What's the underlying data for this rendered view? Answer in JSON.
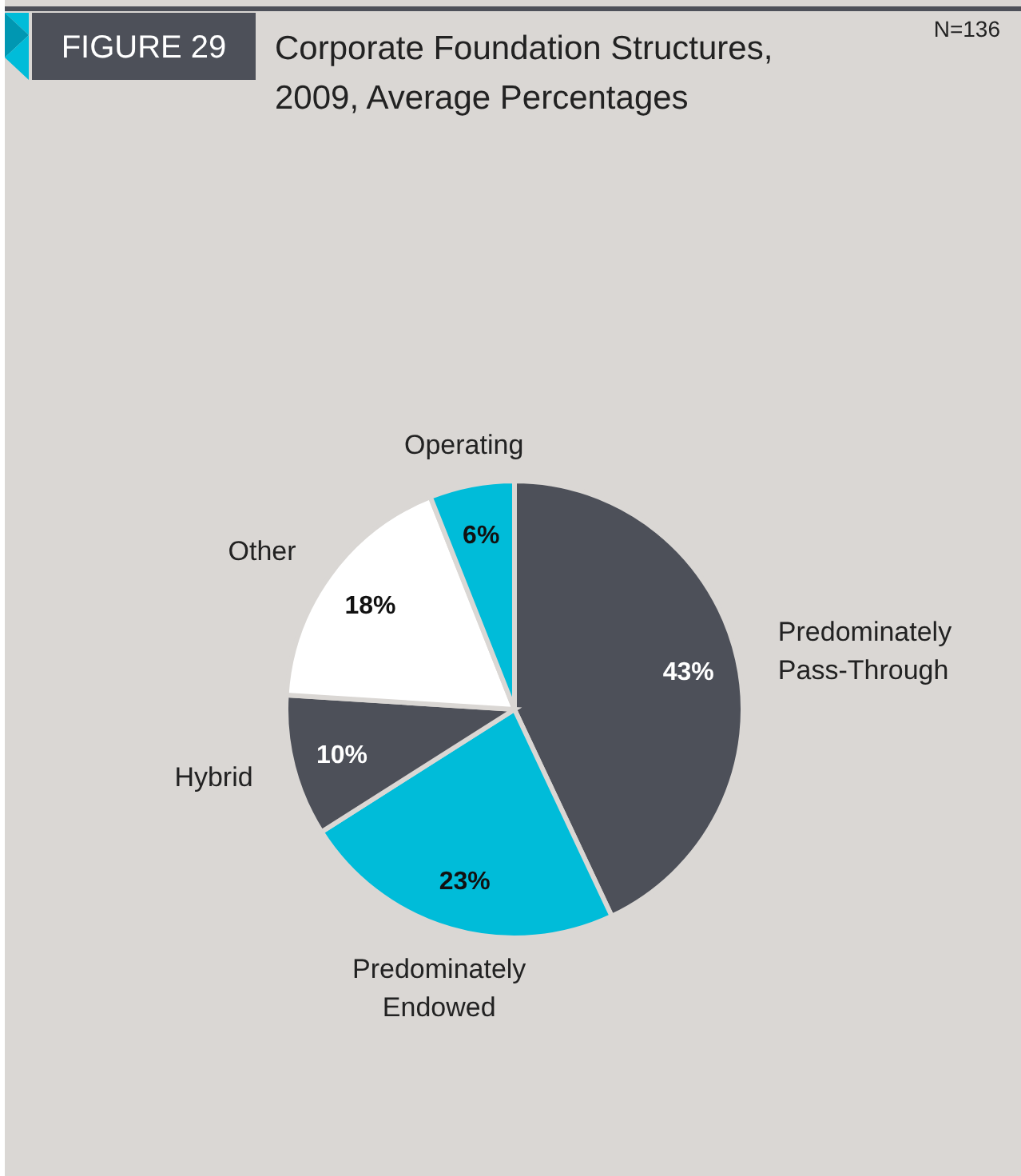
{
  "chart_data": {
    "type": "pie",
    "title": "Corporate Foundation Structures, 2009, Average Percentages",
    "annotations": [
      "FIGURE 29",
      "N=136"
    ],
    "categories": [
      "Predominately Pass-Through",
      "Predominately Endowed",
      "Hybrid",
      "Other",
      "Operating"
    ],
    "values": [
      43,
      23,
      10,
      18,
      6
    ],
    "colors": [
      "#4d5059",
      "#00bcd9",
      "#4d5059",
      "#ffffff",
      "#00bcd9"
    ],
    "value_labels": [
      "43%",
      "23%",
      "10%",
      "18%",
      "6%"
    ]
  }
}
